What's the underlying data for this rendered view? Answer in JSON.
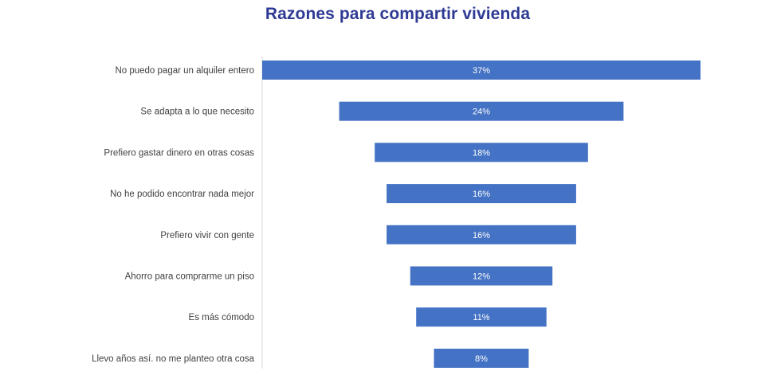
{
  "chart_data": {
    "type": "bar",
    "orientation": "horizontal",
    "title": "Razones para compartir vivienda",
    "categories": [
      "No puedo pagar un alquiler entero",
      "Se adapta a lo que necesito",
      "Prefiero gastar dinero en otras cosas",
      "No he podido encontrar nada mejor",
      "Prefiero vivir con gente",
      "Ahorro para comprarme un piso",
      "Es más cómodo",
      "Llevo años así. no me planteo otra cosa"
    ],
    "values": [
      37,
      24,
      18,
      16,
      16,
      12,
      11,
      8
    ],
    "value_labels": [
      "37%",
      "24%",
      "18%",
      "16%",
      "16%",
      "12%",
      "11%",
      "8%"
    ],
    "bar_alignment": "centered (funnel)",
    "xlabel": "",
    "ylabel": "",
    "grid": false,
    "legend": "none",
    "colors": {
      "bar": "#4472c4",
      "title": "#2e3a94",
      "axis": "#d9d9d9",
      "category_text": "#404040",
      "value_text": "#ffffff"
    }
  }
}
